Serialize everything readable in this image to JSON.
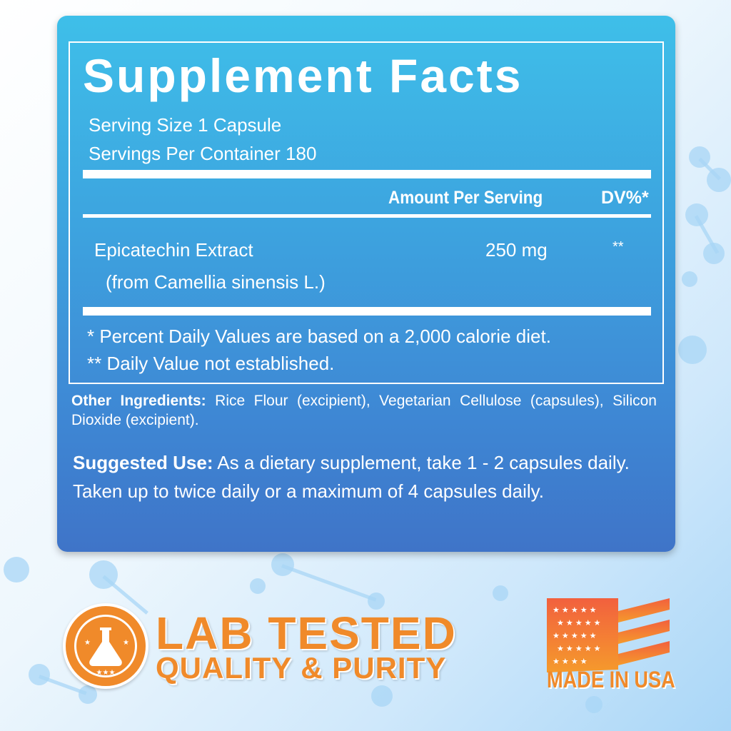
{
  "facts": {
    "title": "Supplement Facts",
    "serving_size": "Serving Size 1 Capsule",
    "servings_per_container": "Servings Per Container 180",
    "col_amount": "Amount Per Serving",
    "col_dv": "DV%*",
    "ingredient": {
      "name": "Epicatechin Extract",
      "source": "(from Camellia sinensis L.)",
      "amount": "250 mg",
      "dv": "**"
    },
    "footnote1": "* Percent Daily Values are based on a 2,000 calorie diet.",
    "footnote2": "** Daily Value not established."
  },
  "other_ingredients": {
    "label": "Other Ingredients:",
    "text": " Rice Flour (excipient), Vegetarian Cellulose (capsules), Silicon Dioxide (excipient)."
  },
  "suggested_use": {
    "label": "Suggested Use:",
    "text": " As a dietary supplement, take 1 - 2 capsules daily. Taken up to twice daily or a maximum of 4 capsules daily."
  },
  "badges": {
    "lab_line1": "LAB TESTED",
    "lab_line2": "QUALITY & PURITY",
    "usa": "MADE IN USA",
    "flask_icon": "flask-icon"
  },
  "colors": {
    "accent_orange": "#f08a2a",
    "panel_top": "#3ebfe9",
    "panel_bottom": "#3f74c8"
  }
}
